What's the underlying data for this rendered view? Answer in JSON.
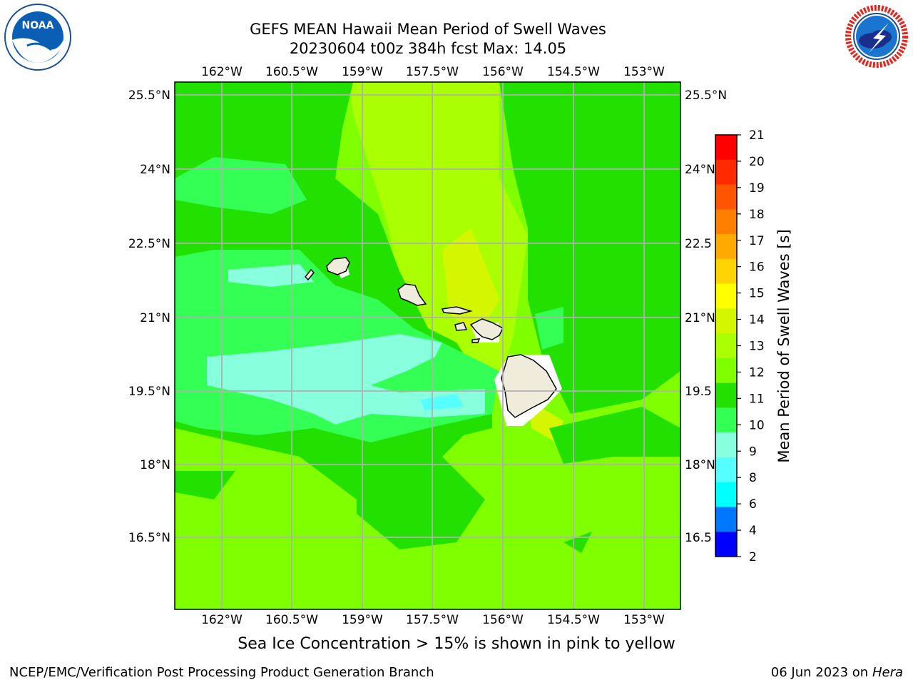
{
  "header": {
    "title_line1": "GEFS MEAN Hawaii Mean Period of Swell Waves",
    "title_line2": "20230604 t00z 384h fcst   Max: 14.05"
  },
  "map": {
    "lon_labels": [
      "162°W",
      "160.5°W",
      "159°W",
      "157.5°W",
      "156°W",
      "154.5°W",
      "153°W"
    ],
    "lat_labels": [
      "25.5°N",
      "24°N",
      "22.5°N",
      "21°N",
      "19.5°N",
      "18°N",
      "16.5°N"
    ],
    "lat_labels_right_truncated": [
      "25.5°N",
      "24°N",
      "22.5",
      "21°N",
      "19.5",
      "18°N",
      "16.5"
    ],
    "land_color": "#efecdc",
    "grid_color": "#b0b0b0"
  },
  "colorbar": {
    "label": "Mean Period of Swell Waves [s]",
    "ticks": [
      "21",
      "20",
      "19",
      "18",
      "17",
      "16",
      "15",
      "14",
      "13",
      "12",
      "11",
      "10",
      "9",
      "8",
      "6",
      "4",
      "2"
    ],
    "colors": [
      "#ff0000",
      "#ff2a00",
      "#ff5500",
      "#ff7f00",
      "#ffaa00",
      "#ffd400",
      "#ffff00",
      "#d4f700",
      "#aaff00",
      "#7fff00",
      "#22e000",
      "#33ff55",
      "#88ffdd",
      "#55ffff",
      "#00ffff",
      "#0077ff",
      "#0000ff"
    ]
  },
  "footer": {
    "sea_ice_note": "Sea Ice Concentration > 15% is shown in pink to yellow",
    "branch": "NCEP/EMC/Verification Post Processing Product Generation Branch",
    "date": "06 Jun 2023 on",
    "host": "Hera"
  },
  "logos": {
    "noaa_text": "NOAA",
    "nws_text": "NATIONAL WEATHER SERVICE"
  }
}
